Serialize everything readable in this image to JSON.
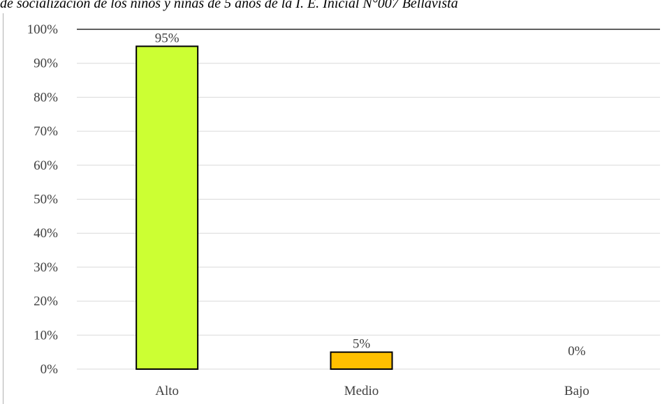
{
  "chart_data": {
    "type": "bar",
    "title": "de socialización de los niños y niñas de 5 años de la I. E. Inicial N°007 Bellavista",
    "categories": [
      "Alto",
      "Medio",
      "Bajo"
    ],
    "values": [
      95,
      5,
      0
    ],
    "data_labels": [
      "95%",
      "5%",
      "0%"
    ],
    "colors": [
      "#ccff33",
      "#ffc000",
      "#ffc000"
    ],
    "ylim": [
      0,
      100
    ],
    "yticks": [
      0,
      10,
      20,
      30,
      40,
      50,
      60,
      70,
      80,
      90,
      100
    ],
    "ytick_labels": [
      "0%",
      "10%",
      "20%",
      "30%",
      "40%",
      "50%",
      "60%",
      "70%",
      "80%",
      "90%",
      "100%"
    ],
    "xlabel": "",
    "ylabel": "",
    "grid": true,
    "legend": "none"
  }
}
